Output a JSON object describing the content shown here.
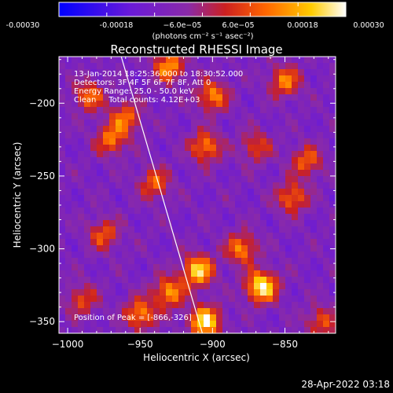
{
  "title": "Reconstructed RHESSI Image",
  "timestamp": "28-Apr-2022 03:18",
  "colorbar": {
    "ticks": [
      "-0.00030",
      "-0.00018",
      "−6.0e−05",
      "6.0e−05",
      "0.00018",
      "0.00030"
    ],
    "unit_label": "(photons cm⁻² s⁻¹ asec⁻²)",
    "min": -0.0003,
    "max": 0.0003,
    "colors": [
      "#0000ff",
      "#6a1ad8",
      "#8a2aa8",
      "#cc2020",
      "#ff6600",
      "#ffcc00",
      "#ffffff"
    ]
  },
  "info": {
    "line1": "13-Jan-2014 18:25:36.000 to 18:30:52.000",
    "line2": "Detectors: 3F 4F 5F 6F 7F 8F, Att 0",
    "line3": "Energy Range: 25.0 - 50.0 keV",
    "line4": "Clean     Total counts: 4.12E+03",
    "peak": "Position of Peak = [-866,-326]"
  },
  "chart_data": {
    "type": "heatmap",
    "title": "Reconstructed RHESSI Image",
    "xlabel": "Heliocentric X (arcsec)",
    "ylabel": "Heliocentric Y (arcsec)",
    "xlim": [
      -1006,
      -815
    ],
    "ylim": [
      -358,
      -168
    ],
    "xticks": [
      -1000,
      -950,
      -900,
      -850
    ],
    "yticks": [
      -200,
      -250,
      -300,
      -350
    ],
    "limb_line": [
      [
        -963,
        -168
      ],
      [
        -907,
        -358
      ]
    ],
    "peak": {
      "x": -866,
      "y": -326
    },
    "grid": false,
    "sources": [
      {
        "x": -905,
        "y": -350,
        "value": 0.00028
      },
      {
        "x": -910,
        "y": -315,
        "value": 0.00025
      },
      {
        "x": -866,
        "y": -326,
        "value": 0.0003
      },
      {
        "x": -930,
        "y": -330,
        "value": 0.00018
      },
      {
        "x": -950,
        "y": -345,
        "value": 0.00017
      },
      {
        "x": -880,
        "y": -300,
        "value": 0.00016
      },
      {
        "x": -905,
        "y": -230,
        "value": 0.00016
      },
      {
        "x": -930,
        "y": -175,
        "value": 0.00018
      },
      {
        "x": -900,
        "y": -195,
        "value": 0.00016
      },
      {
        "x": -970,
        "y": -225,
        "value": 0.00014
      },
      {
        "x": -985,
        "y": -195,
        "value": 0.00013
      },
      {
        "x": -850,
        "y": -185,
        "value": 0.00015
      },
      {
        "x": -835,
        "y": -240,
        "value": 0.00012
      },
      {
        "x": -975,
        "y": -290,
        "value": 0.00011
      },
      {
        "x": -845,
        "y": -265,
        "value": 0.00014
      },
      {
        "x": -960,
        "y": -210,
        "value": 0.00013
      },
      {
        "x": -940,
        "y": -255,
        "value": 0.00012
      },
      {
        "x": -825,
        "y": -350,
        "value": 0.0001
      },
      {
        "x": -870,
        "y": -230,
        "value": 9e-05
      },
      {
        "x": -990,
        "y": -335,
        "value": 9e-05
      }
    ]
  }
}
